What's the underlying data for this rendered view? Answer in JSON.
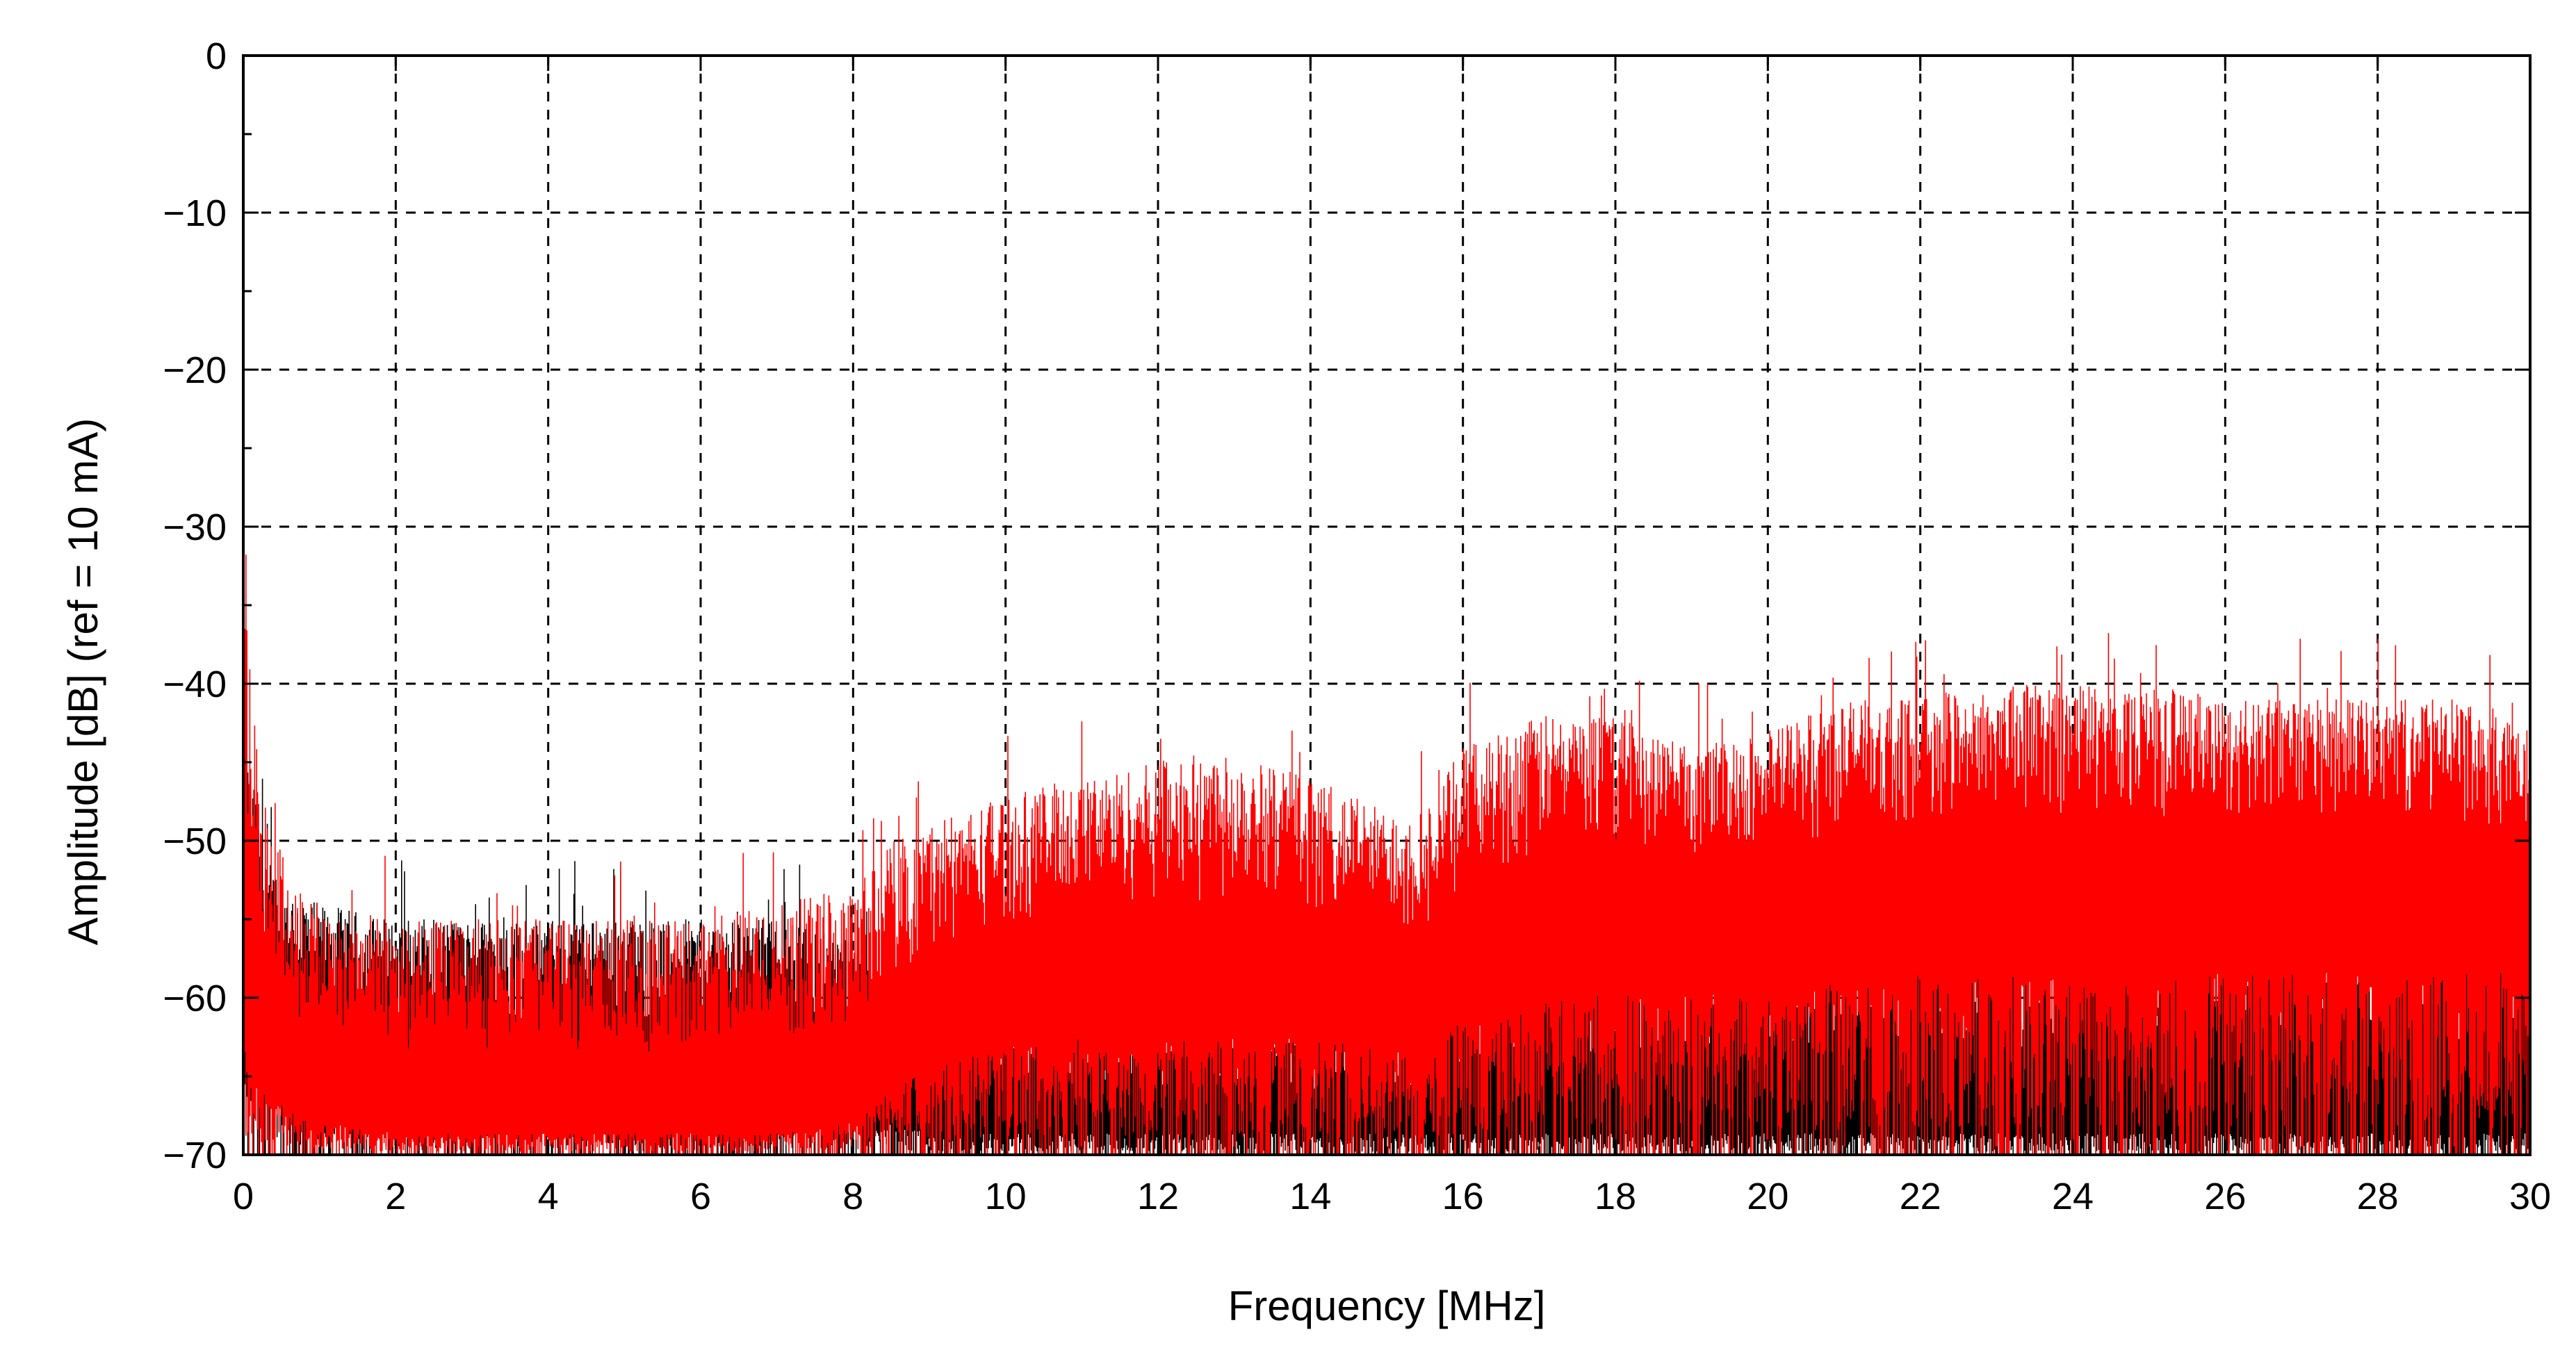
{
  "chart_data": {
    "type": "line",
    "title": "",
    "xlabel": "Frequency [MHz]",
    "ylabel": "Amplitude [dB] (ref = 10 mA)",
    "xlim": [
      0,
      30
    ],
    "ylim": [
      -70,
      0
    ],
    "grid": true,
    "grid_style": "dashed",
    "x_ticks": [
      0,
      2,
      4,
      6,
      8,
      10,
      12,
      14,
      16,
      18,
      20,
      22,
      24,
      26,
      28,
      30
    ],
    "y_ticks": [
      0,
      -10,
      -20,
      -30,
      -40,
      -50,
      -60,
      -70
    ],
    "x_tick_labels": [
      "0",
      "2",
      "4",
      "6",
      "8",
      "10",
      "12",
      "14",
      "16",
      "18",
      "20",
      "22",
      "24",
      "26",
      "28",
      "30"
    ],
    "y_tick_labels": [
      "0",
      "−10",
      "−20",
      "−30",
      "−40",
      "−50",
      "−60",
      "−70"
    ],
    "series": [
      {
        "color": "#000000",
        "envelope": {
          "x": [
            0,
            0.1,
            0.3,
            0.6,
            1,
            2,
            3,
            4,
            5,
            6,
            7,
            8,
            8.5,
            9,
            10,
            11,
            12,
            13,
            14,
            15,
            15.5,
            16,
            17,
            18,
            19,
            20,
            21,
            22,
            23,
            24,
            25,
            26,
            27,
            28,
            29,
            30
          ],
          "peak": [
            -42,
            -46,
            -51,
            -53,
            -54,
            -55,
            -55,
            -55,
            -55,
            -55,
            -55,
            -56,
            -58,
            -60,
            -61,
            -62,
            -62,
            -62,
            -62,
            -62,
            -63,
            -59,
            -57,
            -56,
            -56,
            -56,
            -55,
            -55,
            -55,
            -55,
            -55,
            -55,
            -55,
            -55,
            -55,
            -55
          ],
          "floor": [
            -58,
            -60,
            -62,
            -64,
            -65,
            -66,
            -66,
            -66,
            -66,
            -66,
            -66,
            -66,
            -67,
            -68,
            -68,
            -68,
            -68,
            -68,
            -68,
            -68,
            -68,
            -68,
            -68,
            -68,
            -68,
            -68,
            -68,
            -68,
            -68,
            -68,
            -68,
            -68,
            -68,
            -68,
            -68,
            -68
          ]
        }
      },
      {
        "color": "#ff0000",
        "envelope": {
          "x": [
            0,
            0.1,
            0.3,
            0.6,
            1,
            2,
            3,
            4,
            5,
            6,
            7,
            8,
            8.5,
            9,
            10,
            11,
            12,
            13,
            14,
            15,
            15.5,
            16,
            17,
            18,
            19,
            20,
            21,
            22,
            23,
            24,
            25,
            26,
            27,
            28,
            29,
            30
          ],
          "peak": [
            -33,
            -40,
            -48,
            -52,
            -54,
            -55,
            -55,
            -55,
            -55,
            -55,
            -54,
            -53,
            -50,
            -49,
            -47,
            -46,
            -45,
            -44,
            -46,
            -48,
            -48,
            -44,
            -42,
            -42,
            -44,
            -43,
            -41,
            -41,
            -40,
            -40,
            -40,
            -41,
            -41,
            -41,
            -41,
            -43
          ],
          "floor": [
            -60,
            -62,
            -64,
            -66,
            -67,
            -68,
            -68,
            -68,
            -68,
            -68,
            -68,
            -67,
            -64,
            -62,
            -60,
            -59,
            -59,
            -59,
            -59,
            -60,
            -61,
            -57,
            -56,
            -55,
            -55,
            -55,
            -54,
            -53,
            -53,
            -53,
            -53,
            -53,
            -53,
            -53,
            -53,
            -53
          ]
        }
      }
    ]
  }
}
